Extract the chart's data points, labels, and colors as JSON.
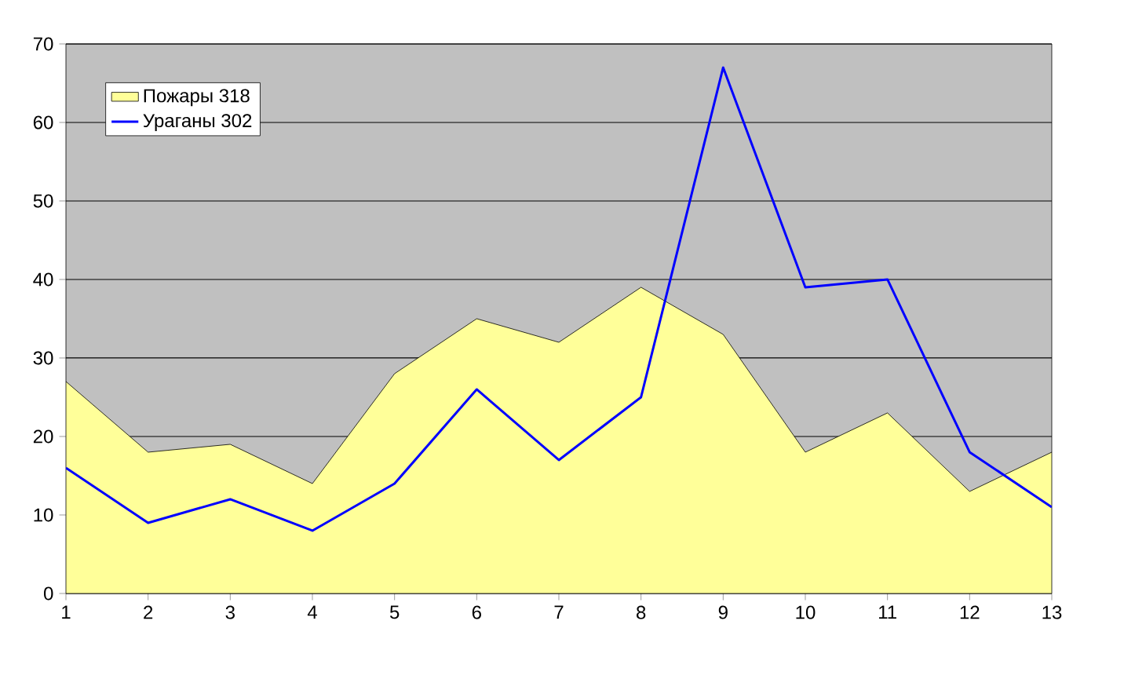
{
  "chart_data": {
    "type": "area",
    "x": [
      1,
      2,
      3,
      4,
      5,
      6,
      7,
      8,
      9,
      10,
      11,
      12,
      13
    ],
    "xlim": [
      1,
      13
    ],
    "xticks": [
      1,
      2,
      3,
      4,
      5,
      6,
      7,
      8,
      9,
      10,
      11,
      12,
      13
    ],
    "ylim": [
      0,
      70
    ],
    "yticks": [
      0,
      10,
      20,
      30,
      40,
      50,
      60,
      70
    ],
    "grid": "y",
    "legend": "top left",
    "series": [
      {
        "name": "Пожары 318",
        "color": "#ffff99",
        "values": [
          27,
          18,
          19,
          14,
          28,
          35,
          32,
          39,
          33,
          18,
          23,
          13,
          18
        ]
      },
      {
        "name": "Ураганы 302",
        "type": "line",
        "color": "#0000ff",
        "values": [
          16,
          9,
          12,
          8,
          14,
          26,
          17,
          25,
          67,
          39,
          40,
          18,
          11
        ]
      }
    ]
  }
}
